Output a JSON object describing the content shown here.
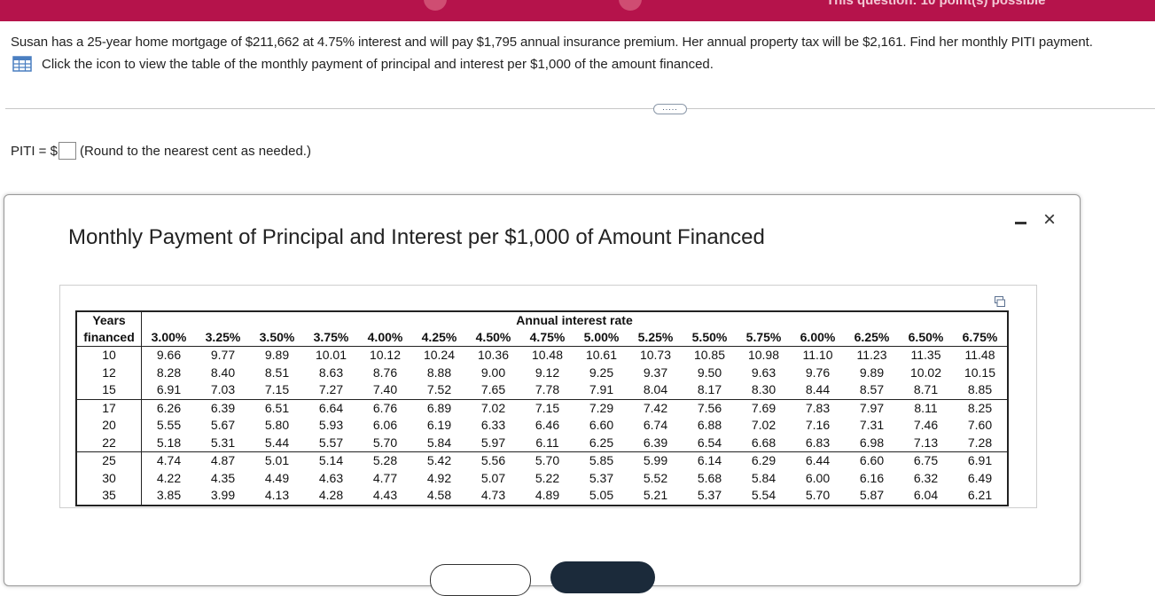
{
  "header": {
    "points_text": "This question: 10 point(s) possible"
  },
  "question": {
    "text": "Susan has a 25-year home mortgage of $211,662 at 4.75% interest and will pay $1,795 annual insurance premium. Her annual property tax will be $2,161. Find her monthly PITI payment.",
    "hint": "Click the icon to view the table of the monthly payment of principal and interest per $1,000 of the amount financed.",
    "more_button": "....."
  },
  "answer": {
    "label": "PITI = $",
    "value": "",
    "note": "(Round to the nearest cent as needed.)"
  },
  "modal": {
    "title": "Monthly Payment of Principal and Interest per $1,000 of Amount Financed",
    "close_label": "×"
  },
  "table": {
    "years_header_line1": "Years",
    "years_header_line2": "financed",
    "rate_group_header": "Annual interest rate",
    "rates": [
      "3.00%",
      "3.25%",
      "3.50%",
      "3.75%",
      "4.00%",
      "4.25%",
      "4.50%",
      "4.75%",
      "5.00%",
      "5.25%",
      "5.50%",
      "5.75%",
      "6.00%",
      "6.25%",
      "6.50%",
      "6.75%"
    ],
    "rows": [
      {
        "years": "10",
        "values": [
          "9.66",
          "9.77",
          "9.89",
          "10.01",
          "10.12",
          "10.24",
          "10.36",
          "10.48",
          "10.61",
          "10.73",
          "10.85",
          "10.98",
          "11.10",
          "11.23",
          "11.35",
          "11.48"
        ]
      },
      {
        "years": "12",
        "values": [
          "8.28",
          "8.40",
          "8.51",
          "8.63",
          "8.76",
          "8.88",
          "9.00",
          "9.12",
          "9.25",
          "9.37",
          "9.50",
          "9.63",
          "9.76",
          "9.89",
          "10.02",
          "10.15"
        ]
      },
      {
        "years": "15",
        "values": [
          "6.91",
          "7.03",
          "7.15",
          "7.27",
          "7.40",
          "7.52",
          "7.65",
          "7.78",
          "7.91",
          "8.04",
          "8.17",
          "8.30",
          "8.44",
          "8.57",
          "8.71",
          "8.85"
        ]
      },
      {
        "years": "17",
        "values": [
          "6.26",
          "6.39",
          "6.51",
          "6.64",
          "6.76",
          "6.89",
          "7.02",
          "7.15",
          "7.29",
          "7.42",
          "7.56",
          "7.69",
          "7.83",
          "7.97",
          "8.11",
          "8.25"
        ]
      },
      {
        "years": "20",
        "values": [
          "5.55",
          "5.67",
          "5.80",
          "5.93",
          "6.06",
          "6.19",
          "6.33",
          "6.46",
          "6.60",
          "6.74",
          "6.88",
          "7.02",
          "7.16",
          "7.31",
          "7.46",
          "7.60"
        ]
      },
      {
        "years": "22",
        "values": [
          "5.18",
          "5.31",
          "5.44",
          "5.57",
          "5.70",
          "5.84",
          "5.97",
          "6.11",
          "6.25",
          "6.39",
          "6.54",
          "6.68",
          "6.83",
          "6.98",
          "7.13",
          "7.28"
        ]
      },
      {
        "years": "25",
        "values": [
          "4.74",
          "4.87",
          "5.01",
          "5.14",
          "5.28",
          "5.42",
          "5.56",
          "5.70",
          "5.85",
          "5.99",
          "6.14",
          "6.29",
          "6.44",
          "6.60",
          "6.75",
          "6.91"
        ]
      },
      {
        "years": "30",
        "values": [
          "4.22",
          "4.35",
          "4.49",
          "4.63",
          "4.77",
          "4.92",
          "5.07",
          "5.22",
          "5.37",
          "5.52",
          "5.68",
          "5.84",
          "6.00",
          "6.16",
          "6.32",
          "6.49"
        ]
      },
      {
        "years": "35",
        "values": [
          "3.85",
          "3.99",
          "4.13",
          "4.28",
          "4.43",
          "4.58",
          "4.73",
          "4.89",
          "5.05",
          "5.21",
          "5.37",
          "5.54",
          "5.70",
          "5.87",
          "6.04",
          "6.21"
        ]
      }
    ]
  },
  "colors": {
    "brand_bar": "#b5134b",
    "icon_blue": "#4a7fc1",
    "dark_button": "#1b2a3a"
  },
  "icons": [
    "grid-table-icon",
    "more-icon",
    "minimize-icon",
    "close-icon",
    "copy-icon"
  ]
}
